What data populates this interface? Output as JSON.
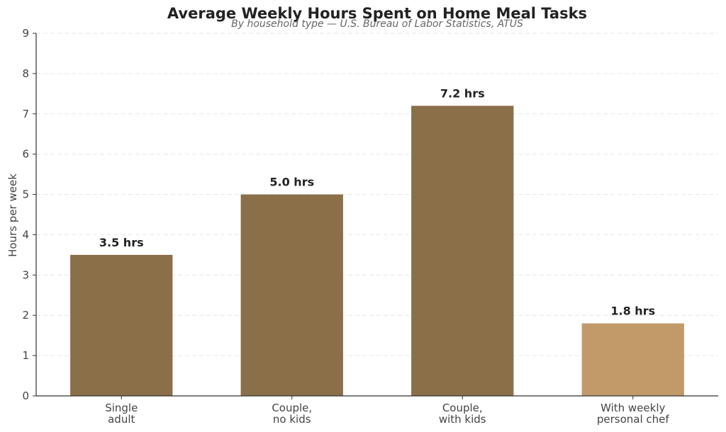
{
  "chart_data": {
    "type": "bar",
    "title": "Average Weekly Hours Spent on Home Meal Tasks",
    "subtitle": "By household type — U.S. Bureau of Labor Statistics, ATUS",
    "xlabel": "",
    "ylabel": "Hours per week",
    "categories": [
      [
        "Single",
        "adult"
      ],
      [
        "Couple,",
        "no kids"
      ],
      [
        "Couple,",
        "with kids"
      ],
      [
        "With weekly",
        "personal chef"
      ]
    ],
    "values": [
      3.5,
      5.0,
      7.2,
      1.8
    ],
    "data_labels": [
      "3.5 hrs",
      "5.0 hrs",
      "7.2 hrs",
      "1.8 hrs"
    ],
    "bar_colors": [
      "#8a6f48",
      "#8a6f48",
      "#8a6f48",
      "#c29a6a"
    ],
    "ylim": [
      0,
      9
    ],
    "yticks": [
      0,
      1,
      2,
      3,
      4,
      5,
      6,
      7,
      8,
      9
    ],
    "grid": true,
    "legend": "none"
  }
}
